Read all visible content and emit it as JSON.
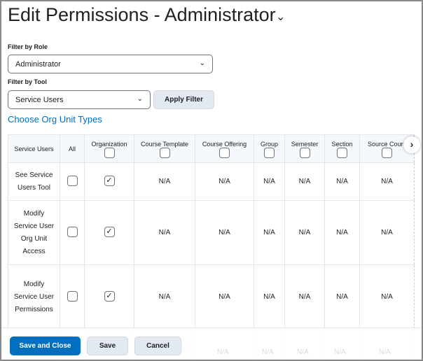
{
  "title": "Edit Permissions - Administrator",
  "filter_role": {
    "label": "Filter by Role",
    "value": "Administrator"
  },
  "filter_tool": {
    "label": "Filter by Tool",
    "value": "Service Users",
    "apply": "Apply Filter"
  },
  "org_unit_link": "Choose Org Unit Types",
  "table": {
    "headers": [
      "Service Users",
      "All",
      "Organization",
      "Course Template",
      "Course Offering",
      "Group",
      "Semester",
      "Section",
      "Source Cours"
    ],
    "rows": [
      {
        "name": "See Service Users Tool",
        "all": false,
        "organization": true,
        "cells": [
          "N/A",
          "N/A",
          "N/A",
          "N/A",
          "N/A",
          "N/A"
        ]
      },
      {
        "name": "Modify Service User Org Unit Access",
        "all": false,
        "organization": true,
        "cells": [
          "N/A",
          "N/A",
          "N/A",
          "N/A",
          "N/A",
          "N/A"
        ]
      },
      {
        "name": "Modify Service User Permissions",
        "all": false,
        "organization": true,
        "cells": [
          "N/A",
          "N/A",
          "N/A",
          "N/A",
          "N/A",
          "N/A"
        ]
      }
    ],
    "partial_row_cells": [
      "N/A",
      "N/A",
      "N/A",
      "N/A",
      "N/A"
    ]
  },
  "footer": {
    "save_close": "Save and Close",
    "save": "Save",
    "cancel": "Cancel"
  },
  "colors": {
    "primary": "#006fbf",
    "link": "#006fbf",
    "secondary_button": "#e3e9f1"
  }
}
